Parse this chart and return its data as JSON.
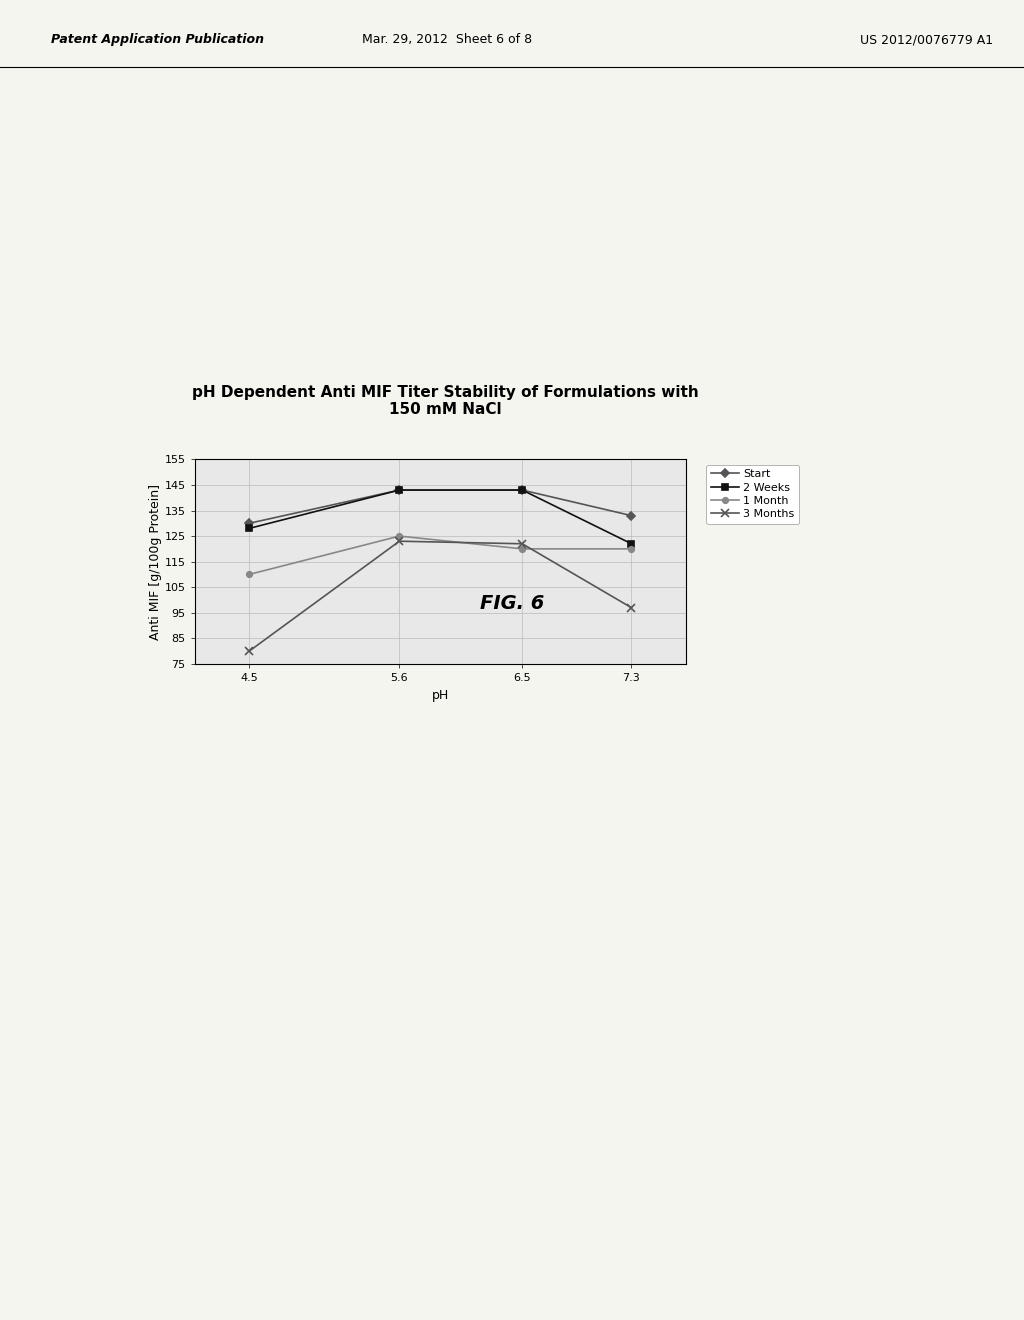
{
  "title_line1": "pH Dependent Anti MIF Titer Stability of Formulations with",
  "title_line2": "150 mM NaCl",
  "xlabel": "pH",
  "ylabel": "Anti MIF [g/100g Protein]",
  "x_values": [
    4.5,
    5.6,
    6.5,
    7.3
  ],
  "x_labels": [
    "4.5",
    "5.6",
    "6.5",
    "7.3"
  ],
  "ylim": [
    75,
    155
  ],
  "yticks": [
    75,
    85,
    95,
    105,
    115,
    125,
    135,
    145,
    155
  ],
  "series": [
    {
      "label": "Start",
      "values": [
        130,
        143,
        143,
        133
      ],
      "color": "#555555",
      "marker": "D",
      "markersize": 4,
      "linewidth": 1.2,
      "linestyle": "-"
    },
    {
      "label": "2 Weeks",
      "values": [
        128,
        143,
        143,
        122
      ],
      "color": "#111111",
      "marker": "s",
      "markersize": 4,
      "linewidth": 1.2,
      "linestyle": "-"
    },
    {
      "label": "1 Month",
      "values": [
        110,
        125,
        120,
        120
      ],
      "color": "#888888",
      "marker": "o",
      "markersize": 4,
      "linewidth": 1.2,
      "linestyle": "-"
    },
    {
      "label": "3 Months",
      "values": [
        80,
        123,
        122,
        97
      ],
      "color": "#555555",
      "marker": "x",
      "markersize": 6,
      "linewidth": 1.2,
      "linestyle": "-"
    }
  ],
  "background_color": "#f5f5f0",
  "plot_bg_color": "#e8e8e8",
  "grid_color": "#bbbbbb",
  "title_fontsize": 11,
  "axis_label_fontsize": 9,
  "tick_fontsize": 8,
  "legend_fontsize": 8,
  "fig_label": "FIG. 6",
  "fig_label_fontsize": 14,
  "header_left": "Patent Application Publication",
  "header_mid": "Mar. 29, 2012  Sheet 6 of 8",
  "header_right": "US 2012/0076779 A1"
}
